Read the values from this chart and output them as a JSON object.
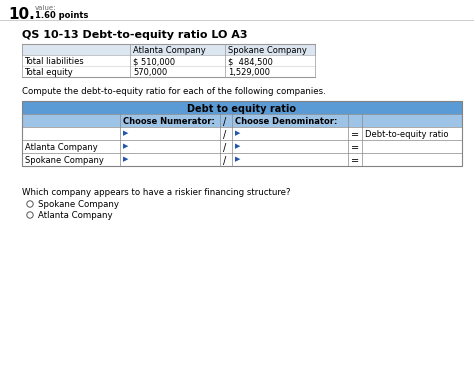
{
  "title_number": "10.",
  "title_value_label": "value:",
  "title_points": "1.60 points",
  "section_title": "QS 10-13 Debt-to-equity ratio LO A3",
  "top_table_headers": [
    "",
    "Atlanta Company",
    "Spokane Company"
  ],
  "top_table_rows": [
    [
      "Total liabilities",
      "$ 510,000",
      "$  484,500"
    ],
    [
      "Total equity",
      "570,000",
      "1,529,000"
    ]
  ],
  "instruction": "Compute the debt-to-equity ratio for each of the following companies.",
  "ratio_table_header": "Debt to equity ratio",
  "ratio_col_headers": [
    "",
    "Choose Numerator:",
    "/",
    "Choose Denominator:",
    "",
    ""
  ],
  "ratio_row0_label": "",
  "ratio_row0_result": "Debt-to-equity ratio",
  "ratio_row1_label": "Atlanta Company",
  "ratio_row2_label": "Spokane Company",
  "question": "Which company appears to have a riskier financing structure?",
  "options": [
    "Spokane Company",
    "Atlanta Company"
  ],
  "header_bg": "#5b9bd5",
  "subheader_bg": "#9dc3e6",
  "top_table_bg": "#dce6f1",
  "bg_color": "#ffffff",
  "text_color": "#000000",
  "grid_color": "#aaaaaa",
  "arrow_color": "#2255aa"
}
